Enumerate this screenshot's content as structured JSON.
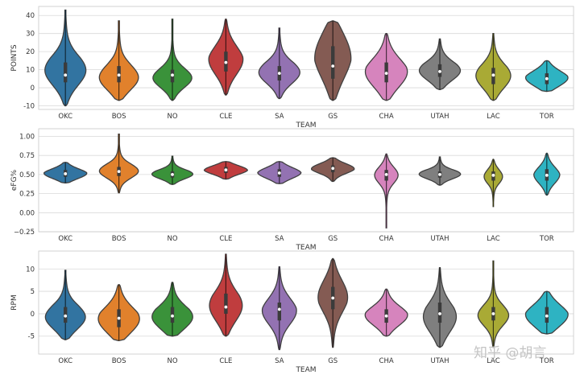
{
  "watermark": "知乎 @胡言",
  "chart_data": [
    {
      "type": "violin",
      "xlabel": "TEAM",
      "ylabel": "POINTS",
      "ylim": [
        -12,
        45
      ],
      "yticks": [
        -10,
        0,
        10,
        20,
        30,
        40
      ],
      "grid": true,
      "categories": [
        "OKC",
        "BOS",
        "NO",
        "CLE",
        "SA",
        "GS",
        "CHA",
        "UTAH",
        "LAC",
        "TOR"
      ],
      "colors": [
        "#3274a1",
        "#e1812c",
        "#3a923a",
        "#c03d3e",
        "#9372b2",
        "#845b53",
        "#d684bd",
        "#7f7f7f",
        "#a9aa35",
        "#2eb3c2"
      ],
      "violins": [
        {
          "min": -10,
          "max": 43,
          "q1": 3,
          "median": 7,
          "q3": 14,
          "mode": 9,
          "w": 1.0
        },
        {
          "min": -7,
          "max": 37,
          "q1": 3,
          "median": 7,
          "q3": 12,
          "mode": 5,
          "w": 1.0
        },
        {
          "min": -7,
          "max": 38,
          "q1": 3,
          "median": 7,
          "q3": 10,
          "mode": 5,
          "w": 1.0
        },
        {
          "min": -4,
          "max": 38,
          "q1": 9,
          "median": 14,
          "q3": 20,
          "mode": 15,
          "w": 0.8
        },
        {
          "min": -6,
          "max": 33,
          "q1": 4,
          "median": 8,
          "q3": 12,
          "mode": 8,
          "w": 1.0
        },
        {
          "min": -7,
          "max": 37,
          "q1": 5,
          "median": 12,
          "q3": 23,
          "mode": 18,
          "w": 0.85
        },
        {
          "min": -7,
          "max": 30,
          "q1": 3,
          "median": 8,
          "q3": 14,
          "mode": 8,
          "w": 1.0
        },
        {
          "min": -1,
          "max": 27,
          "q1": 6,
          "median": 9,
          "q3": 13,
          "mode": 9,
          "w": 1.0
        },
        {
          "min": -7,
          "max": 30,
          "q1": 2,
          "median": 7,
          "q3": 11,
          "mode": 6,
          "w": 0.85
        },
        {
          "min": -2,
          "max": 15,
          "q1": 2,
          "median": 5,
          "q3": 8,
          "mode": 5,
          "w": 1.0
        }
      ]
    },
    {
      "type": "violin",
      "xlabel": "TEAM",
      "ylabel": "eFG%",
      "ylim": [
        -0.25,
        1.1
      ],
      "yticks": [
        -0.25,
        0.0,
        0.25,
        0.5,
        0.75,
        1.0
      ],
      "yticklabels": [
        "−0.25",
        "0.00",
        "0.25",
        "0.50",
        "0.75",
        "1.00"
      ],
      "grid": true,
      "categories": [
        "OKC",
        "BOS",
        "NO",
        "CLE",
        "SA",
        "GS",
        "CHA",
        "UTAH",
        "LAC",
        "TOR"
      ],
      "colors": [
        "#3274a1",
        "#e1812c",
        "#3a923a",
        "#c03d3e",
        "#9372b2",
        "#845b53",
        "#d684bd",
        "#7f7f7f",
        "#a9aa35",
        "#2eb3c2"
      ],
      "violins": [
        {
          "min": 0.39,
          "max": 0.66,
          "q1": 0.47,
          "median": 0.51,
          "q3": 0.56,
          "mode": 0.51,
          "w": 1.0
        },
        {
          "min": 0.26,
          "max": 1.03,
          "q1": 0.48,
          "median": 0.54,
          "q3": 0.6,
          "mode": 0.54,
          "w": 0.95
        },
        {
          "min": 0.37,
          "max": 0.74,
          "q1": 0.46,
          "median": 0.5,
          "q3": 0.54,
          "mode": 0.5,
          "w": 1.0
        },
        {
          "min": 0.44,
          "max": 0.67,
          "q1": 0.52,
          "median": 0.56,
          "q3": 0.6,
          "mode": 0.56,
          "w": 1.0
        },
        {
          "min": 0.38,
          "max": 0.67,
          "q1": 0.47,
          "median": 0.52,
          "q3": 0.57,
          "mode": 0.52,
          "w": 1.0
        },
        {
          "min": 0.41,
          "max": 0.72,
          "q1": 0.53,
          "median": 0.58,
          "q3": 0.62,
          "mode": 0.58,
          "w": 1.0
        },
        {
          "min": -0.2,
          "max": 0.77,
          "q1": 0.42,
          "median": 0.5,
          "q3": 0.56,
          "mode": 0.5,
          "w": 0.6
        },
        {
          "min": 0.36,
          "max": 0.73,
          "q1": 0.46,
          "median": 0.5,
          "q3": 0.54,
          "mode": 0.5,
          "w": 1.0
        },
        {
          "min": 0.08,
          "max": 0.7,
          "q1": 0.42,
          "median": 0.49,
          "q3": 0.54,
          "mode": 0.48,
          "w": 0.45
        },
        {
          "min": 0.23,
          "max": 0.78,
          "q1": 0.42,
          "median": 0.49,
          "q3": 0.57,
          "mode": 0.49,
          "w": 0.6
        }
      ]
    },
    {
      "type": "violin",
      "xlabel": "TEAM",
      "ylabel": "RPM",
      "ylim": [
        -9,
        14
      ],
      "yticks": [
        -5,
        0,
        5,
        10
      ],
      "grid": true,
      "categories": [
        "OKC",
        "BOS",
        "NO",
        "CLE",
        "SA",
        "GS",
        "CHA",
        "UTAH",
        "LAC",
        "TOR"
      ],
      "colors": [
        "#3274a1",
        "#e1812c",
        "#3a923a",
        "#c03d3e",
        "#9372b2",
        "#845b53",
        "#d684bd",
        "#7f7f7f",
        "#a9aa35",
        "#2eb3c2"
      ],
      "violins": [
        {
          "min": -5.8,
          "max": 9.7,
          "q1": -2.0,
          "median": -0.5,
          "q3": 1.5,
          "mode": -1.0,
          "w": 1.0
        },
        {
          "min": -6.0,
          "max": 6.5,
          "q1": -3.0,
          "median": -1.0,
          "q3": 1.0,
          "mode": -1.5,
          "w": 1.0
        },
        {
          "min": -5.0,
          "max": 7.0,
          "q1": -2.0,
          "median": -0.5,
          "q3": 1.5,
          "mode": -1.0,
          "w": 1.0
        },
        {
          "min": -5.0,
          "max": 13.3,
          "q1": 0.0,
          "median": 1.5,
          "q3": 4.5,
          "mode": 1.5,
          "w": 0.8
        },
        {
          "min": -8.0,
          "max": 10.5,
          "q1": -1.5,
          "median": 1.0,
          "q3": 2.5,
          "mode": 0.5,
          "w": 0.8
        },
        {
          "min": -7.5,
          "max": 12.3,
          "q1": 1.0,
          "median": 3.5,
          "q3": 6.0,
          "mode": 4.0,
          "w": 0.7
        },
        {
          "min": -5.0,
          "max": 5.5,
          "q1": -2.0,
          "median": -0.5,
          "q3": 1.0,
          "mode": -0.5,
          "w": 1.0
        },
        {
          "min": -7.5,
          "max": 10.3,
          "q1": -2.0,
          "median": 0.0,
          "q3": 2.5,
          "mode": -1.0,
          "w": 0.8
        },
        {
          "min": -7.5,
          "max": 11.8,
          "q1": -1.5,
          "median": 0.0,
          "q3": 1.5,
          "mode": -0.5,
          "w": 0.75
        },
        {
          "min": -4.5,
          "max": 5.0,
          "q1": -2.0,
          "median": -0.5,
          "q3": 1.5,
          "mode": -0.5,
          "w": 1.0
        }
      ]
    }
  ]
}
